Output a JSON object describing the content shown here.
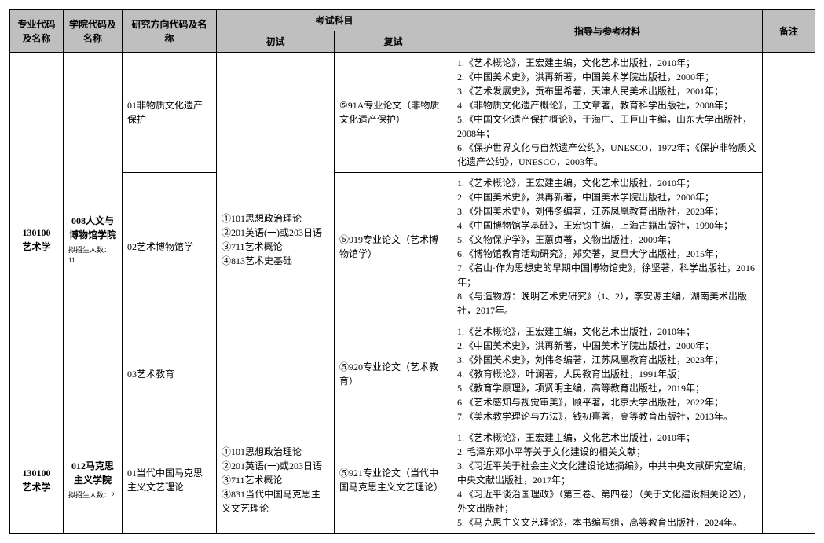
{
  "headers": {
    "major": "专业代码及名称",
    "college": "学院代码及名称",
    "direction": "研究方向代码及名称",
    "exam": "考试科目",
    "exam_first": "初试",
    "exam_second": "复试",
    "guide": "指导与参考材料",
    "note": "备注"
  },
  "rows": [
    {
      "major_code": "130100",
      "major_name": "艺术学",
      "college_code": "008人文与博物馆学院",
      "enroll_note": "拟招生人数：11",
      "first_exam": "①101思想政治理论\n②201英语(一)或203日语\n③711艺术概论\n④813艺术史基础",
      "directions": [
        {
          "name": "01非物质文化遗产保护",
          "second_exam": "⑤91A专业论文（非物质文化遗产保护）",
          "guide": "1.《艺术概论》，王宏建主编，文化艺术出版社，2010年；\n2.《中国美术史》，洪再新著，中国美术学院出版社，2000年；\n3.《艺术发展史》，贡布里希著，天津人民美术出版社，2001年；\n4.《非物质文化遗产概论》，王文章著，教育科学出版社，2008年；\n5.《中国文化遗产保护概论》，于海广、王巨山主编，山东大学出版社，2008年；\n6.《保护世界文化与自然遗产公约》，UNESCO，1972年；《保护非物质文化遗产公约》，UNESCO，2003年。"
        },
        {
          "name": "02艺术博物馆学",
          "second_exam": "⑤919专业论文（艺术博物馆学）",
          "guide": "1.《艺术概论》，王宏建主编，文化艺术出版社，2010年；\n2.《中国美术史》，洪再新著，中国美术学院出版社，2000年；\n3.《外国美术史》，刘伟冬编著，江苏凤凰教育出版社，2023年；\n4.《中国博物馆学基础》，王宏钧主编，上海古籍出版社，1990年；\n5.《文物保护学》，王蕙贞著，文物出版社，2009年；\n6.《博物馆教育活动研究》，郑奕著，复旦大学出版社，2015年；\n7.《名山·作为思想史的早期中国博物馆史》，徐坚著，科学出版社，2016年；\n8.《与造物游：晚明艺术史研究》（1、2），李安源主编，湖南美术出版社，2017年。"
        },
        {
          "name": "03艺术教育",
          "second_exam": "⑤920专业论文（艺术教育）",
          "guide": "1.《艺术概论》，王宏建主编，文化艺术出版社，2010年；\n2.《中国美术史》，洪再新著，中国美术学院出版社，2000年；\n3.《外国美术史》，刘伟冬编著，江苏凤凰教育出版社，2023年；\n4.《教育概论》，叶澜著，人民教育出版社，1991年版；\n5.《教育学原理》，项贤明主编，高等教育出版社，2019年；\n6.《艺术感知与视觉审美》，顾平著，北京大学出版社，2022年；\n7.《美术教学理论与方法》，钱初熹著，高等教育出版社，2013年。"
        }
      ]
    },
    {
      "major_code": "130100",
      "major_name": "艺术学",
      "college_code": "012马克思主义学院",
      "enroll_note": "拟招生人数：2",
      "first_exam": "①101思想政治理论\n②201英语(一)或203日语\n③711艺术概论\n④831当代中国马克思主义文艺理论",
      "directions": [
        {
          "name": "01当代中国马克思主义文艺理论",
          "second_exam": "⑤921专业论文（当代中国马克思主义文艺理论）",
          "guide": "1.《艺术概论》，王宏建主编，文化艺术出版社，2010年；\n2. 毛泽东邓小平等关于文化建设的相关文献；\n3.《习近平关于社会主义文化建设论述摘编》，中共中央文献研究室编，中央文献出版社，2017年；\n4.《习近平谈治国理政》（第三卷、第四卷）（关于文化建设相关论述），外文出版社；\n5.《马克思主义文艺理论》，本书编写组，高等教育出版社，2024年。"
        }
      ]
    }
  ]
}
